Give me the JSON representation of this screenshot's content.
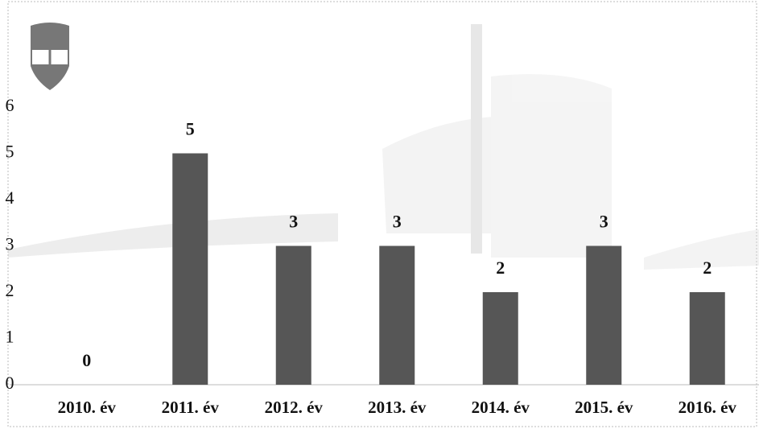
{
  "chart_data": {
    "type": "bar",
    "categories": [
      "2010. év",
      "2011. év",
      "2012. év",
      "2013. év",
      "2014. év",
      "2015. év",
      "2016. év"
    ],
    "values": [
      0,
      5,
      3,
      3,
      2,
      3,
      2
    ],
    "color": "#565656",
    "ylim": [
      0,
      6
    ],
    "yticks": [
      0,
      1,
      2,
      3,
      4,
      5,
      6
    ],
    "grid": false
  }
}
